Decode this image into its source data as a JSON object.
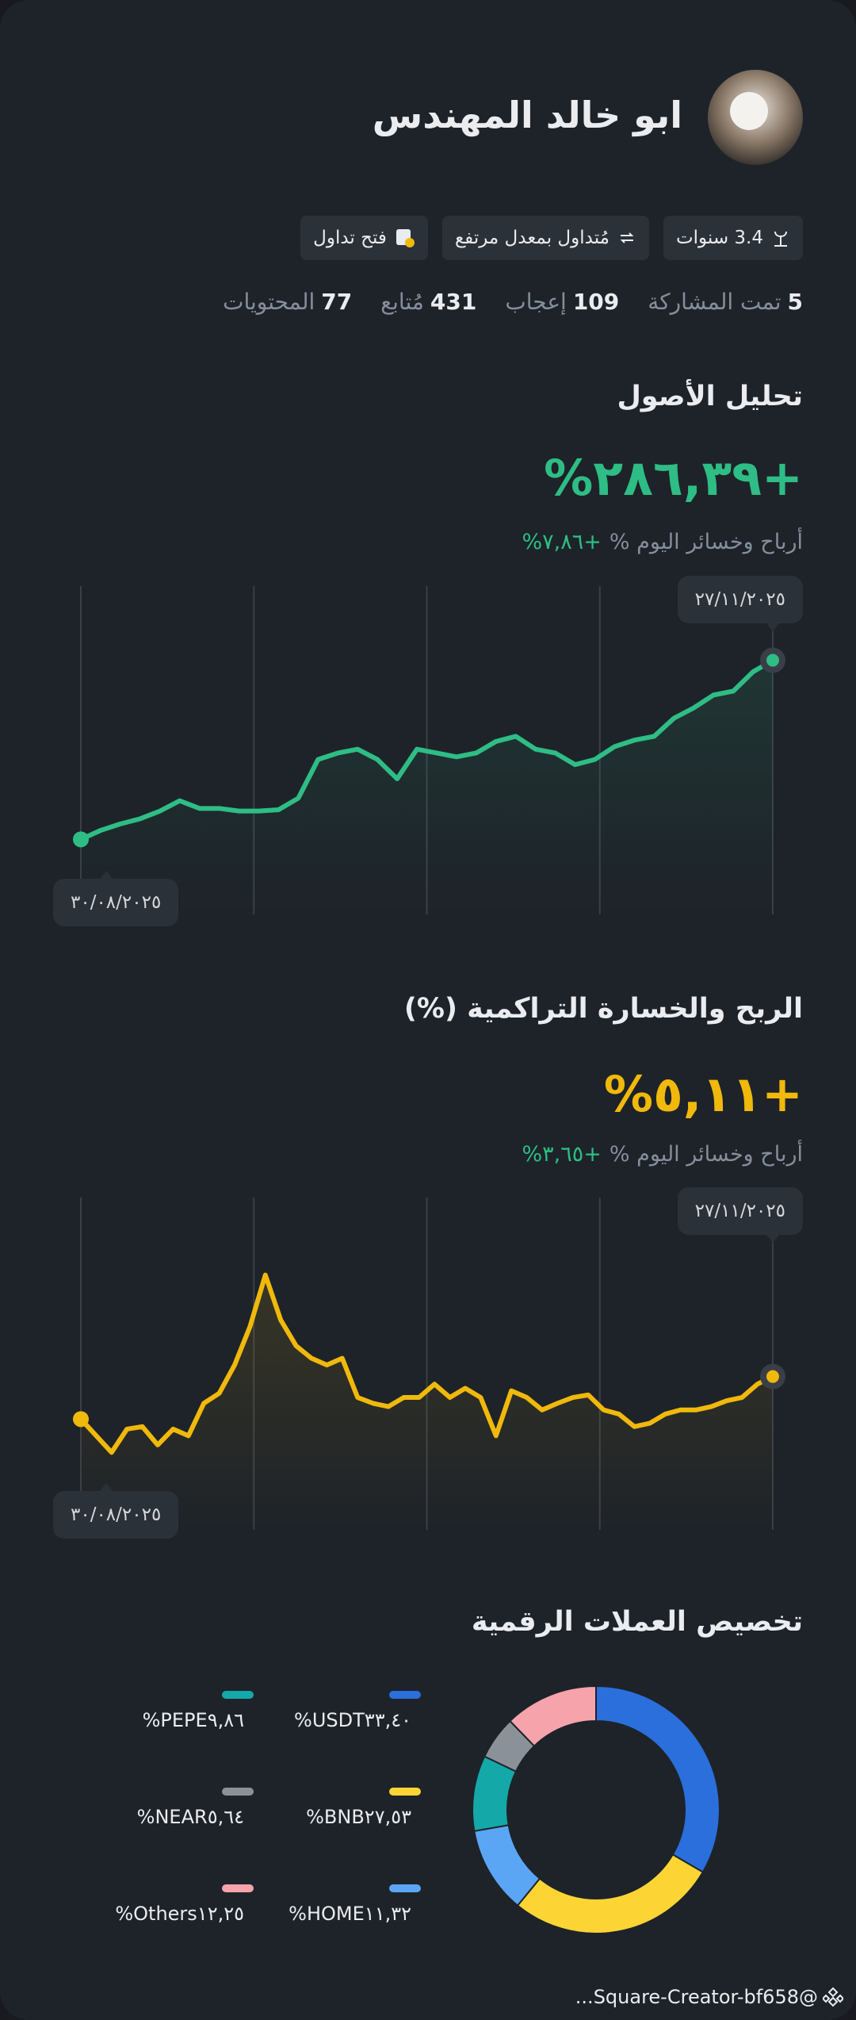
{
  "profile": {
    "name": "ابو خالد المهندس",
    "badges": [
      "3.4 سنوات",
      "مُتداول بمعدل مرتفع",
      "فتح تداول"
    ],
    "stats": [
      {
        "value": 5,
        "label": "تمت المشاركة"
      },
      {
        "value": 109,
        "label": "إعجاب"
      },
      {
        "value": 431,
        "label": "مُتابع"
      },
      {
        "value": 77,
        "label": "المحتويات"
      }
    ]
  },
  "chart_data": [
    {
      "type": "line",
      "title": "تحليل الأصول",
      "headline": "+٢٨٦,٣٩%",
      "subtitle": "أرباح وخسائر اليوم %",
      "subtitle_value": "+٧,٨٦%",
      "start_label": "٣٠/٠٨/٢٠٢٥",
      "end_label": "٢٧/١١/٢٠٢٥",
      "color": "#2ebd85",
      "ylim": [
        -120,
        405
      ],
      "values": [
        0,
        14.4,
        24.7,
        33.0,
        45.3,
        61.8,
        49.5,
        49.5,
        45.3,
        45.3,
        47.4,
        65.9,
        127.8,
        138.1,
        144.2,
        127.8,
        96.8,
        144.2,
        138.1,
        131.9,
        138.1,
        156.6,
        164.8,
        144.2,
        138.1,
        119.5,
        127.8,
        148.4,
        158.7,
        164.8,
        193.7,
        210.2,
        230.8,
        237.0,
        267.9,
        286.39
      ]
    },
    {
      "type": "line",
      "title": "الربح والخسارة التراكمية (%)",
      "headline": "+٥,١١%",
      "subtitle": "أرباح وخسائر اليوم %",
      "subtitle_value": "+٣,٦٥%",
      "start_label": "٣٠/٠٨/٢٠٢٥",
      "end_label": "٢٧/١١/٢٠٢٥",
      "color": "#f0b90b",
      "ylim": [
        -13.3,
        26.6
      ],
      "values": [
        0,
        -2.0,
        -4.0,
        -1.2,
        -0.9,
        -3.1,
        -1.2,
        -2.0,
        1.9,
        3.1,
        6.5,
        11.1,
        17.3,
        11.9,
        8.8,
        7.3,
        6.5,
        7.3,
        2.6,
        1.9,
        1.5,
        2.6,
        2.6,
        4.2,
        2.6,
        3.7,
        2.6,
        -2.0,
        3.4,
        2.6,
        1.1,
        1.9,
        2.6,
        2.9,
        1.1,
        0.6,
        -0.9,
        -0.5,
        0.6,
        1.1,
        1.1,
        1.5,
        2.2,
        2.6,
        4.2,
        5.11
      ]
    },
    {
      "type": "pie",
      "title": "تخصيص العملات الرقمية",
      "donut": true,
      "categories": [
        "USDT",
        "BNB",
        "HOME",
        "PEPE",
        "NEAR",
        "Others"
      ],
      "values": [
        33.4,
        27.53,
        11.32,
        9.86,
        5.64,
        12.25
      ],
      "value_labels": [
        "٣٣,٤٠%",
        "٢٧,٥٣%",
        "١١,٣٢%",
        "٩,٨٦%",
        "٥,٦٤%",
        "١٢,٢٥%"
      ],
      "colors": [
        "#2a6fdb",
        "#fcd535",
        "#5aa6f5",
        "#14a8a8",
        "#8a9199",
        "#f6a3ab"
      ]
    }
  ],
  "watermark": "@Square-Creator-bf658..."
}
